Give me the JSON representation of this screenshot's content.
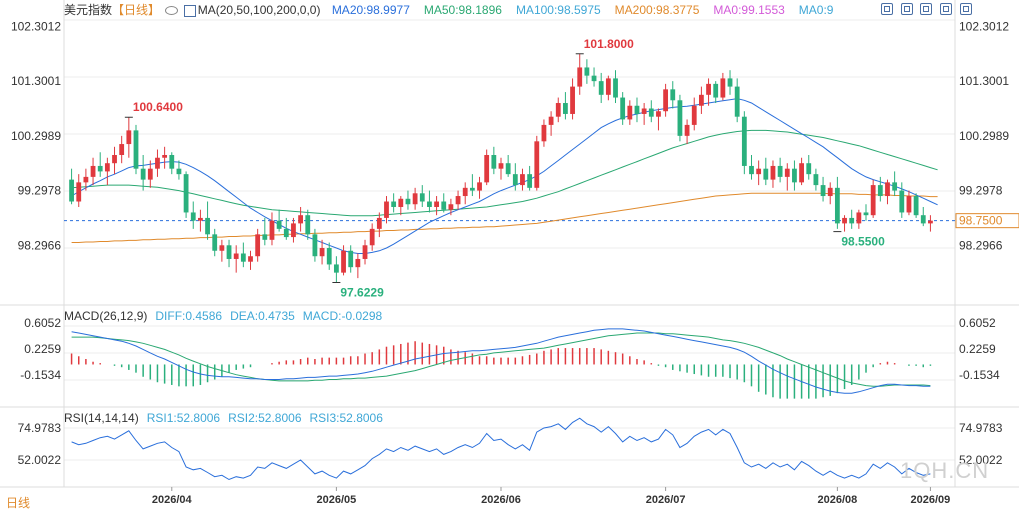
{
  "header": {
    "symbol": "美元指数",
    "period": "【日线】",
    "ma_prefix": "MA(20,50,100,200,0,0)",
    "ma_values": [
      {
        "label": "MA20:98.9977",
        "color": "#2a6fdb"
      },
      {
        "label": "MA50:98.1896",
        "color": "#2aa872"
      },
      {
        "label": "MA100:98.5975",
        "color": "#3fa7d6"
      },
      {
        "label": "MA200:98.3775",
        "color": "#e08a2c"
      },
      {
        "label": "MA0:99.1553",
        "color": "#d35ad8"
      },
      {
        "label": "MA0:9",
        "color": "#3fa7d6"
      }
    ]
  },
  "macd_header": {
    "title": "MACD(26,12,9)",
    "diff": "DIFF:0.4586",
    "dea": "DEA:0.4735",
    "macd": "MACD:-0.0298"
  },
  "rsi_header": {
    "title": "RSI(14,14,14)",
    "rsi1": "RSI1:52.8006",
    "rsi2": "RSI2:52.8006",
    "rsi3": "RSI3:52.8006"
  },
  "price_axis": [
    "102.3012",
    "101.3001",
    "100.2989",
    "99.2978",
    "98.2966"
  ],
  "current_price": "98.7500",
  "price_annotations": {
    "high1": "100.6400",
    "high2": "101.8000",
    "low1": "97.6229",
    "low2": "98.5500"
  },
  "macd_axis": [
    "0.6052",
    "0.2259",
    "-0.1534"
  ],
  "rsi_axis": [
    "74.9783",
    "52.0022"
  ],
  "x_labels": [
    "2026/04",
    "2026/05",
    "2026/06",
    "2026/07",
    "2026/08",
    "2026/09"
  ],
  "bottom_label": "日线",
  "watermark": "1QH.CN",
  "colors": {
    "up": "#e0393e",
    "down": "#2ab07d",
    "ma20": "#2a6fdb",
    "ma50": "#2aa872",
    "ma200": "#e08a2c"
  },
  "chart_data": {
    "type": "candlestick",
    "price_ylim": [
      97.3,
      102.6
    ],
    "reference_price": 98.75,
    "candles": [
      [
        99.5,
        99.7,
        99.05,
        99.1
      ],
      [
        99.1,
        99.6,
        99.0,
        99.45
      ],
      [
        99.45,
        99.7,
        99.3,
        99.55
      ],
      [
        99.55,
        99.9,
        99.4,
        99.75
      ],
      [
        99.75,
        100.0,
        99.55,
        99.65
      ],
      [
        99.65,
        99.9,
        99.4,
        99.8
      ],
      [
        99.8,
        100.1,
        99.6,
        99.95
      ],
      [
        99.95,
        100.3,
        99.8,
        100.15
      ],
      [
        100.15,
        100.64,
        99.9,
        100.4
      ],
      [
        100.4,
        100.5,
        99.6,
        99.7
      ],
      [
        99.7,
        99.95,
        99.3,
        99.5
      ],
      [
        99.5,
        99.85,
        99.35,
        99.7
      ],
      [
        99.7,
        100.05,
        99.55,
        99.9
      ],
      [
        99.9,
        100.1,
        99.7,
        99.95
      ],
      [
        99.95,
        100.0,
        99.6,
        99.7
      ],
      [
        99.7,
        99.85,
        99.5,
        99.6
      ],
      [
        99.6,
        99.65,
        98.8,
        98.9
      ],
      [
        98.9,
        99.1,
        98.6,
        98.75
      ],
      [
        98.75,
        98.95,
        98.55,
        98.8
      ],
      [
        98.8,
        99.1,
        98.4,
        98.5
      ],
      [
        98.5,
        98.6,
        98.1,
        98.2
      ],
      [
        98.2,
        98.4,
        98.0,
        98.3
      ],
      [
        98.3,
        98.4,
        97.9,
        98.05
      ],
      [
        98.05,
        98.3,
        97.8,
        98.15
      ],
      [
        98.15,
        98.35,
        97.9,
        98.0
      ],
      [
        98.0,
        98.2,
        97.85,
        98.1
      ],
      [
        98.1,
        98.6,
        98.0,
        98.5
      ],
      [
        98.5,
        98.8,
        98.3,
        98.4
      ],
      [
        98.4,
        98.9,
        98.3,
        98.75
      ],
      [
        98.75,
        98.95,
        98.55,
        98.6
      ],
      [
        98.6,
        98.8,
        98.4,
        98.45
      ],
      [
        98.45,
        98.8,
        98.35,
        98.7
      ],
      [
        98.7,
        99.0,
        98.55,
        98.85
      ],
      [
        98.85,
        98.95,
        98.4,
        98.5
      ],
      [
        98.5,
        98.6,
        98.0,
        98.1
      ],
      [
        98.1,
        98.4,
        97.95,
        98.25
      ],
      [
        98.25,
        98.35,
        97.85,
        97.95
      ],
      [
        97.95,
        98.1,
        97.62,
        97.8
      ],
      [
        97.8,
        98.3,
        97.75,
        98.2
      ],
      [
        98.2,
        98.3,
        97.8,
        97.9
      ],
      [
        97.9,
        98.15,
        97.7,
        98.05
      ],
      [
        98.05,
        98.4,
        97.95,
        98.3
      ],
      [
        98.3,
        98.7,
        98.2,
        98.6
      ],
      [
        98.6,
        98.9,
        98.45,
        98.8
      ],
      [
        98.8,
        99.2,
        98.7,
        99.1
      ],
      [
        99.1,
        99.25,
        98.9,
        99.0
      ],
      [
        99.0,
        99.2,
        98.85,
        99.15
      ],
      [
        99.15,
        99.3,
        98.95,
        99.05
      ],
      [
        99.05,
        99.35,
        98.95,
        99.25
      ],
      [
        99.25,
        99.4,
        99.0,
        99.1
      ],
      [
        99.1,
        99.3,
        98.9,
        99.0
      ],
      [
        99.0,
        99.2,
        98.85,
        99.1
      ],
      [
        99.1,
        99.25,
        98.9,
        98.95
      ],
      [
        98.95,
        99.15,
        98.85,
        99.05
      ],
      [
        99.05,
        99.3,
        98.95,
        99.2
      ],
      [
        99.2,
        99.45,
        99.05,
        99.35
      ],
      [
        99.35,
        99.6,
        99.2,
        99.3
      ],
      [
        99.3,
        99.55,
        99.15,
        99.45
      ],
      [
        99.45,
        100.05,
        99.4,
        99.95
      ],
      [
        99.95,
        100.1,
        99.6,
        99.7
      ],
      [
        99.7,
        99.9,
        99.5,
        99.8
      ],
      [
        99.8,
        99.95,
        99.55,
        99.6
      ],
      [
        99.6,
        99.8,
        99.3,
        99.4
      ],
      [
        99.4,
        99.7,
        99.3,
        99.6
      ],
      [
        99.6,
        99.75,
        99.3,
        99.35
      ],
      [
        99.35,
        100.3,
        99.3,
        100.2
      ],
      [
        100.2,
        100.6,
        100.1,
        100.5
      ],
      [
        100.5,
        100.75,
        100.3,
        100.65
      ],
      [
        100.65,
        101.0,
        100.55,
        100.9
      ],
      [
        100.9,
        101.1,
        100.6,
        100.7
      ],
      [
        100.7,
        101.35,
        100.6,
        101.2
      ],
      [
        101.2,
        101.8,
        101.05,
        101.55
      ],
      [
        101.55,
        101.7,
        101.25,
        101.4
      ],
      [
        101.4,
        101.55,
        101.2,
        101.3
      ],
      [
        101.3,
        101.45,
        100.9,
        101.05
      ],
      [
        101.05,
        101.4,
        100.95,
        101.35
      ],
      [
        101.35,
        101.5,
        100.9,
        101.0
      ],
      [
        101.0,
        101.1,
        100.5,
        100.6
      ],
      [
        100.6,
        100.95,
        100.5,
        100.85
      ],
      [
        100.85,
        101.0,
        100.55,
        100.7
      ],
      [
        100.7,
        100.9,
        100.5,
        100.8
      ],
      [
        100.8,
        100.95,
        100.55,
        100.65
      ],
      [
        100.65,
        100.8,
        100.4,
        100.75
      ],
      [
        100.75,
        101.25,
        100.65,
        101.15
      ],
      [
        101.15,
        101.3,
        100.8,
        100.95
      ],
      [
        100.95,
        101.05,
        100.2,
        100.3
      ],
      [
        100.3,
        100.6,
        100.15,
        100.5
      ],
      [
        100.5,
        101.0,
        100.4,
        100.85
      ],
      [
        100.85,
        101.2,
        100.7,
        101.05
      ],
      [
        101.05,
        101.35,
        100.85,
        101.25
      ],
      [
        101.25,
        101.3,
        100.9,
        101.0
      ],
      [
        101.0,
        101.45,
        100.95,
        101.35
      ],
      [
        101.35,
        101.5,
        101.05,
        101.2
      ],
      [
        101.2,
        101.35,
        100.55,
        100.65
      ],
      [
        100.65,
        100.75,
        99.6,
        99.75
      ],
      [
        99.75,
        99.95,
        99.5,
        99.6
      ],
      [
        99.6,
        99.85,
        99.4,
        99.7
      ],
      [
        99.7,
        99.9,
        99.4,
        99.5
      ],
      [
        99.5,
        99.85,
        99.35,
        99.75
      ],
      [
        99.75,
        99.9,
        99.45,
        99.55
      ],
      [
        99.55,
        99.8,
        99.3,
        99.7
      ],
      [
        99.7,
        99.85,
        99.3,
        99.45
      ],
      [
        99.45,
        99.9,
        99.4,
        99.8
      ],
      [
        99.8,
        99.95,
        99.5,
        99.6
      ],
      [
        99.6,
        99.7,
        99.3,
        99.4
      ],
      [
        99.4,
        99.55,
        99.1,
        99.2
      ],
      [
        99.2,
        99.45,
        99.05,
        99.35
      ],
      [
        99.35,
        99.55,
        98.6,
        98.7
      ],
      [
        98.7,
        98.85,
        98.55,
        98.8
      ],
      [
        98.8,
        98.95,
        98.6,
        98.7
      ],
      [
        98.7,
        98.95,
        98.6,
        98.9
      ],
      [
        98.9,
        99.05,
        98.75,
        98.85
      ],
      [
        98.85,
        99.5,
        98.8,
        99.4
      ],
      [
        99.4,
        99.55,
        99.1,
        99.2
      ],
      [
        99.2,
        99.5,
        99.05,
        99.45
      ],
      [
        99.45,
        99.65,
        99.2,
        99.3
      ],
      [
        99.3,
        99.45,
        98.8,
        98.9
      ],
      [
        98.9,
        99.3,
        98.85,
        99.2
      ],
      [
        99.2,
        99.25,
        98.8,
        98.85
      ],
      [
        98.85,
        99.0,
        98.65,
        98.7
      ],
      [
        98.7,
        98.85,
        98.55,
        98.75
      ]
    ],
    "ma20": [
      99.2,
      99.28,
      99.35,
      99.42,
      99.48,
      99.55,
      99.6,
      99.66,
      99.72,
      99.75,
      99.76,
      99.78,
      99.8,
      99.82,
      99.83,
      99.82,
      99.78,
      99.72,
      99.65,
      99.57,
      99.48,
      99.38,
      99.28,
      99.18,
      99.08,
      98.98,
      98.9,
      98.82,
      98.75,
      98.68,
      98.61,
      98.55,
      98.5,
      98.45,
      98.4,
      98.35,
      98.3,
      98.25,
      98.2,
      98.17,
      98.15,
      98.15,
      98.17,
      98.2,
      98.25,
      98.32,
      98.4,
      98.48,
      98.56,
      98.64,
      98.72,
      98.78,
      98.84,
      98.9,
      98.95,
      99.0,
      99.05,
      99.1,
      99.17,
      99.24,
      99.3,
      99.35,
      99.4,
      99.45,
      99.5,
      99.57,
      99.65,
      99.75,
      99.85,
      99.95,
      100.05,
      100.15,
      100.25,
      100.35,
      100.45,
      100.52,
      100.58,
      100.63,
      100.67,
      100.7,
      100.73,
      100.76,
      100.78,
      100.8,
      100.82,
      100.83,
      100.84,
      100.86,
      100.88,
      100.9,
      100.92,
      100.94,
      100.96,
      100.98,
      100.95,
      100.9,
      100.82,
      100.74,
      100.66,
      100.58,
      100.5,
      100.42,
      100.34,
      100.26,
      100.18,
      100.1,
      100.0,
      99.9,
      99.8,
      99.7,
      99.62,
      99.55,
      99.5,
      99.46,
      99.42,
      99.38,
      99.33,
      99.28,
      99.22,
      99.16,
      99.1,
      99.04
    ],
    "ma50": [
      99.35,
      99.36,
      99.37,
      99.38,
      99.39,
      99.4,
      99.4,
      99.4,
      99.4,
      99.39,
      99.38,
      99.37,
      99.36,
      99.34,
      99.32,
      99.3,
      99.27,
      99.24,
      99.21,
      99.18,
      99.15,
      99.12,
      99.09,
      99.06,
      99.03,
      99.01,
      98.99,
      98.97,
      98.95,
      98.94,
      98.93,
      98.92,
      98.91,
      98.9,
      98.89,
      98.88,
      98.87,
      98.86,
      98.85,
      98.84,
      98.84,
      98.84,
      98.84,
      98.85,
      98.86,
      98.87,
      98.88,
      98.89,
      98.9,
      98.91,
      98.92,
      98.93,
      98.94,
      98.95,
      98.96,
      98.97,
      98.98,
      98.99,
      99.0,
      99.02,
      99.04,
      99.06,
      99.08,
      99.1,
      99.13,
      99.16,
      99.2,
      99.24,
      99.28,
      99.33,
      99.38,
      99.43,
      99.48,
      99.53,
      99.58,
      99.63,
      99.68,
      99.73,
      99.78,
      99.83,
      99.88,
      99.93,
      99.98,
      100.03,
      100.08,
      100.12,
      100.16,
      100.2,
      100.24,
      100.28,
      100.31,
      100.34,
      100.36,
      100.38,
      100.39,
      100.4,
      100.4,
      100.4,
      100.39,
      100.38,
      100.37,
      100.35,
      100.33,
      100.31,
      100.29,
      100.27,
      100.24,
      100.21,
      100.18,
      100.15,
      100.12,
      100.08,
      100.04,
      100.0,
      99.96,
      99.92,
      99.88,
      99.84,
      99.8,
      99.76,
      99.72,
      99.68
    ],
    "ma200": [
      98.35,
      98.35,
      98.36,
      98.36,
      98.37,
      98.37,
      98.38,
      98.38,
      98.39,
      98.39,
      98.4,
      98.4,
      98.41,
      98.41,
      98.42,
      98.42,
      98.43,
      98.43,
      98.44,
      98.44,
      98.45,
      98.45,
      98.46,
      98.46,
      98.47,
      98.47,
      98.48,
      98.48,
      98.49,
      98.49,
      98.5,
      98.5,
      98.51,
      98.51,
      98.52,
      98.52,
      98.53,
      98.53,
      98.54,
      98.54,
      98.55,
      98.55,
      98.56,
      98.56,
      98.57,
      98.57,
      98.58,
      98.58,
      98.59,
      98.59,
      98.6,
      98.6,
      98.61,
      98.61,
      98.62,
      98.62,
      98.63,
      98.63,
      98.64,
      98.64,
      98.65,
      98.66,
      98.67,
      98.68,
      98.69,
      98.7,
      98.72,
      98.74,
      98.76,
      98.78,
      98.8,
      98.82,
      98.84,
      98.86,
      98.88,
      98.9,
      98.92,
      98.94,
      98.96,
      98.98,
      99.0,
      99.02,
      99.04,
      99.06,
      99.08,
      99.1,
      99.12,
      99.14,
      99.16,
      99.18,
      99.2,
      99.21,
      99.22,
      99.23,
      99.24,
      99.25,
      99.25,
      99.25,
      99.25,
      99.25,
      99.25,
      99.25,
      99.25,
      99.25,
      99.25,
      99.25,
      99.24,
      99.24,
      99.24,
      99.24,
      99.23,
      99.23,
      99.22,
      99.22,
      99.22,
      99.21,
      99.21,
      99.2,
      99.2,
      99.2,
      99.19,
      99.19
    ],
    "macd_ylim": [
      -0.52,
      0.68
    ],
    "diff": [
      0.48,
      0.46,
      0.44,
      0.42,
      0.4,
      0.38,
      0.36,
      0.34,
      0.31,
      0.27,
      0.22,
      0.17,
      0.12,
      0.08,
      0.03,
      -0.02,
      -0.07,
      -0.11,
      -0.14,
      -0.16,
      -0.17,
      -0.18,
      -0.18,
      -0.19,
      -0.2,
      -0.21,
      -0.21,
      -0.22,
      -0.22,
      -0.22,
      -0.21,
      -0.21,
      -0.2,
      -0.19,
      -0.19,
      -0.18,
      -0.17,
      -0.17,
      -0.16,
      -0.15,
      -0.14,
      -0.12,
      -0.1,
      -0.07,
      -0.04,
      -0.01,
      0.02,
      0.05,
      0.08,
      0.1,
      0.12,
      0.14,
      0.16,
      0.17,
      0.18,
      0.19,
      0.2,
      0.2,
      0.21,
      0.22,
      0.23,
      0.24,
      0.25,
      0.27,
      0.29,
      0.31,
      0.34,
      0.37,
      0.4,
      0.42,
      0.44,
      0.46,
      0.48,
      0.5,
      0.51,
      0.52,
      0.52,
      0.52,
      0.51,
      0.5,
      0.49,
      0.47,
      0.45,
      0.43,
      0.41,
      0.39,
      0.37,
      0.35,
      0.33,
      0.31,
      0.29,
      0.27,
      0.25,
      0.22,
      0.18,
      0.12,
      0.05,
      -0.01,
      -0.07,
      -0.12,
      -0.17,
      -0.21,
      -0.25,
      -0.29,
      -0.33,
      -0.36,
      -0.39,
      -0.41,
      -0.42,
      -0.42,
      -0.4,
      -0.37,
      -0.34,
      -0.31,
      -0.29,
      -0.29,
      -0.3,
      -0.31,
      -0.31,
      -0.32,
      -0.32
    ],
    "dea": [
      0.4,
      0.4,
      0.4,
      0.4,
      0.39,
      0.38,
      0.37,
      0.36,
      0.35,
      0.33,
      0.31,
      0.28,
      0.25,
      0.22,
      0.18,
      0.14,
      0.09,
      0.05,
      0.01,
      -0.03,
      -0.06,
      -0.09,
      -0.12,
      -0.15,
      -0.17,
      -0.19,
      -0.21,
      -0.22,
      -0.23,
      -0.24,
      -0.24,
      -0.24,
      -0.24,
      -0.24,
      -0.23,
      -0.23,
      -0.22,
      -0.22,
      -0.21,
      -0.21,
      -0.2,
      -0.2,
      -0.19,
      -0.18,
      -0.17,
      -0.15,
      -0.13,
      -0.11,
      -0.09,
      -0.06,
      -0.03,
      0.0,
      0.03,
      0.06,
      0.08,
      0.1,
      0.12,
      0.14,
      0.15,
      0.17,
      0.18,
      0.19,
      0.2,
      0.21,
      0.22,
      0.23,
      0.24,
      0.26,
      0.28,
      0.3,
      0.32,
      0.34,
      0.36,
      0.38,
      0.4,
      0.42,
      0.43,
      0.44,
      0.45,
      0.46,
      0.46,
      0.46,
      0.46,
      0.45,
      0.45,
      0.44,
      0.43,
      0.42,
      0.41,
      0.4,
      0.38,
      0.36,
      0.35,
      0.33,
      0.31,
      0.28,
      0.25,
      0.21,
      0.17,
      0.13,
      0.08,
      0.04,
      0.0,
      -0.04,
      -0.08,
      -0.12,
      -0.16,
      -0.2,
      -0.24,
      -0.27,
      -0.29,
      -0.31,
      -0.32,
      -0.32,
      -0.31,
      -0.3,
      -0.3,
      -0.3,
      -0.3,
      -0.3,
      -0.31
    ],
    "rsi_ylim": [
      38.0,
      86.0
    ],
    "rsi": [
      65,
      63,
      64,
      66,
      68,
      69,
      67,
      70,
      73,
      66,
      60,
      62,
      64,
      65,
      61,
      58,
      47,
      45,
      46,
      43,
      40,
      41,
      38,
      40,
      39,
      41,
      47,
      46,
      50,
      48,
      46,
      49,
      52,
      47,
      42,
      44,
      41,
      39,
      44,
      42,
      45,
      48,
      53,
      56,
      60,
      58,
      61,
      59,
      62,
      60,
      58,
      60,
      56,
      58,
      61,
      63,
      61,
      64,
      71,
      66,
      67,
      63,
      60,
      63,
      59,
      72,
      75,
      76,
      78,
      74,
      79,
      82,
      78,
      76,
      72,
      76,
      71,
      65,
      69,
      66,
      68,
      65,
      67,
      74,
      70,
      61,
      64,
      69,
      72,
      74,
      70,
      74,
      71,
      61,
      50,
      47,
      49,
      46,
      50,
      47,
      49,
      45,
      51,
      48,
      44,
      41,
      44,
      41,
      39,
      41,
      39,
      42,
      49,
      46,
      50,
      47,
      42,
      46,
      43,
      41,
      42
    ]
  }
}
